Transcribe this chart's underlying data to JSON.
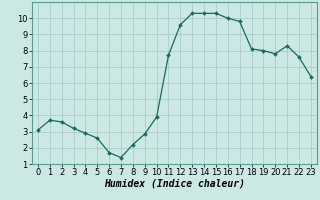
{
  "x": [
    0,
    1,
    2,
    3,
    4,
    5,
    6,
    7,
    8,
    9,
    10,
    11,
    12,
    13,
    14,
    15,
    16,
    17,
    18,
    19,
    20,
    21,
    22,
    23
  ],
  "y": [
    3.1,
    3.7,
    3.6,
    3.2,
    2.9,
    2.6,
    1.7,
    1.4,
    2.2,
    2.85,
    3.9,
    7.7,
    9.6,
    10.3,
    10.3,
    10.3,
    10.0,
    9.8,
    8.1,
    8.0,
    7.8,
    8.3,
    7.6,
    6.4
  ],
  "line_color": "#1a6b5a",
  "marker": "D",
  "marker_size": 2.0,
  "bg_color": "#cce8e4",
  "grid_color": "#aaccca",
  "xlabel": "Humidex (Indice chaleur)",
  "xlabel_fontsize": 7,
  "tick_fontsize": 6,
  "ylim": [
    1,
    11
  ],
  "xlim": [
    -0.5,
    23.5
  ],
  "yticks": [
    1,
    2,
    3,
    4,
    5,
    6,
    7,
    8,
    9,
    10
  ],
  "xticks": [
    0,
    1,
    2,
    3,
    4,
    5,
    6,
    7,
    8,
    9,
    10,
    11,
    12,
    13,
    14,
    15,
    16,
    17,
    18,
    19,
    20,
    21,
    22,
    23
  ]
}
